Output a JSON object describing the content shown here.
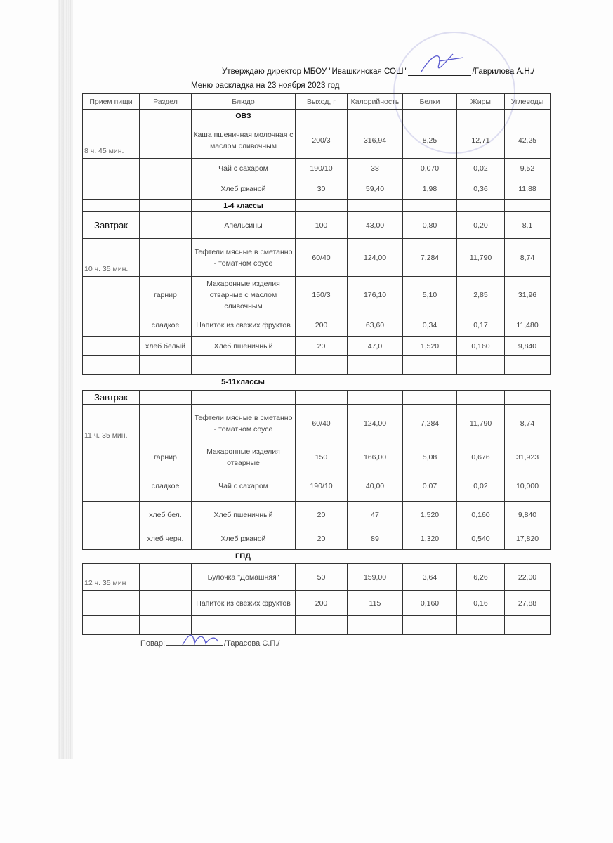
{
  "header": {
    "approve_text": "Утверждаю директор МБОУ \"Ивашкинская СОШ\"",
    "approve_name": "/Гаврилова А.Н./",
    "title": "Меню раскладка на 23 ноября  2023 год"
  },
  "columns": [
    "Прием пищи",
    "Раздел",
    "Блюдо",
    "Выход, г",
    "Калорийность",
    "Белки",
    "Жиры",
    "Углеводы"
  ],
  "section_labels": {
    "grades_5_11": "5-11классы",
    "gpd": "ГПД"
  },
  "tables": [
    {
      "rows": [
        {
          "cells": [
            "",
            "",
            "ОВЗ",
            "",
            "",
            "",
            "",
            ""
          ],
          "style": "section"
        },
        {
          "cells": [
            "8 ч. 45 мин.",
            "",
            "Каша пшеничная молочная с маслом сливочным",
            "200/3",
            "316,94",
            "8,25",
            "12,71",
            "42,25"
          ]
        },
        {
          "cells": [
            "",
            "",
            "Чай с сахаром",
            "190/10",
            "38",
            "0,070",
            "0,02",
            "9,52"
          ]
        },
        {
          "cells": [
            "",
            "",
            "Хлеб ржаной",
            "30",
            "59,40",
            "1,98",
            "0,36",
            "11,88"
          ]
        },
        {
          "cells": [
            "",
            "",
            "1-4 классы",
            "",
            "",
            "",
            "",
            ""
          ],
          "style": "section"
        },
        {
          "cells": [
            "Завтрак",
            "",
            "Апельсины",
            "100",
            "43,00",
            "0,80",
            "0,20",
            "8,1"
          ],
          "style": "meal"
        },
        {
          "cells": [
            "10 ч. 35 мин.",
            "",
            "Тефтели мясные в сметанно - томатном соусе",
            "60/40",
            "124,00",
            "7,284",
            "11,790",
            "8,74"
          ]
        },
        {
          "cells": [
            "",
            "гарнир",
            "Макаронные изделия отварные с маслом сливочным",
            "150/3",
            "176,10",
            "5,10",
            "2,85",
            "31,96"
          ]
        },
        {
          "cells": [
            "",
            "сладкое",
            "Напиток из свежих фруктов",
            "200",
            "63,60",
            "0,34",
            "0,17",
            "11,480"
          ]
        },
        {
          "cells": [
            "",
            "хлеб белый",
            "Хлеб пшеничный",
            "20",
            "47,0",
            "1,520",
            "0,160",
            "9,840"
          ]
        },
        {
          "cells": [
            "",
            "",
            "",
            "",
            "",
            "",
            "",
            ""
          ]
        }
      ]
    },
    {
      "rows": [
        {
          "cells": [
            "Завтрак",
            "",
            "",
            "",
            "",
            "",
            "",
            ""
          ],
          "style": "meal"
        },
        {
          "cells": [
            "11 ч. 35 мин.",
            "",
            "Тефтели мясные в сметанно - томатном соусе",
            "60/40",
            "124,00",
            "7,284",
            "11,790",
            "8,74"
          ]
        },
        {
          "cells": [
            "",
            "гарнир",
            "Макаронные изделия отварные",
            "150",
            "166,00",
            "5,08",
            "0,676",
            "31,923"
          ]
        },
        {
          "cells": [
            "",
            "сладкое",
            "Чай с сахаром",
            "190/10",
            "40,00",
            "0.07",
            "0,02",
            "10,000"
          ]
        },
        {
          "cells": [
            "",
            "хлеб бел.",
            "Хлеб пшеничный",
            "20",
            "47",
            "1,520",
            "0,160",
            "9,840"
          ]
        },
        {
          "cells": [
            "",
            "хлеб черн.",
            "Хлеб ржаной",
            "20",
            "89",
            "1,320",
            "0,540",
            "17,820"
          ]
        }
      ]
    },
    {
      "rows": [
        {
          "cells": [
            "12 ч. 35 мин",
            "",
            "Булочка \"Домашняя\"",
            "50",
            "159,00",
            "3,64",
            "6,26",
            "22,00"
          ]
        },
        {
          "cells": [
            "",
            "",
            "Напиток из свежих фруктов",
            "200",
            "115",
            "0,160",
            "0,16",
            "27,88"
          ]
        },
        {
          "cells": [
            "",
            "",
            "",
            "",
            "",
            "",
            "",
            ""
          ]
        }
      ]
    }
  ],
  "footer": {
    "cook_label": "Повар:",
    "cook_name": "/Тарасова С.П./"
  }
}
